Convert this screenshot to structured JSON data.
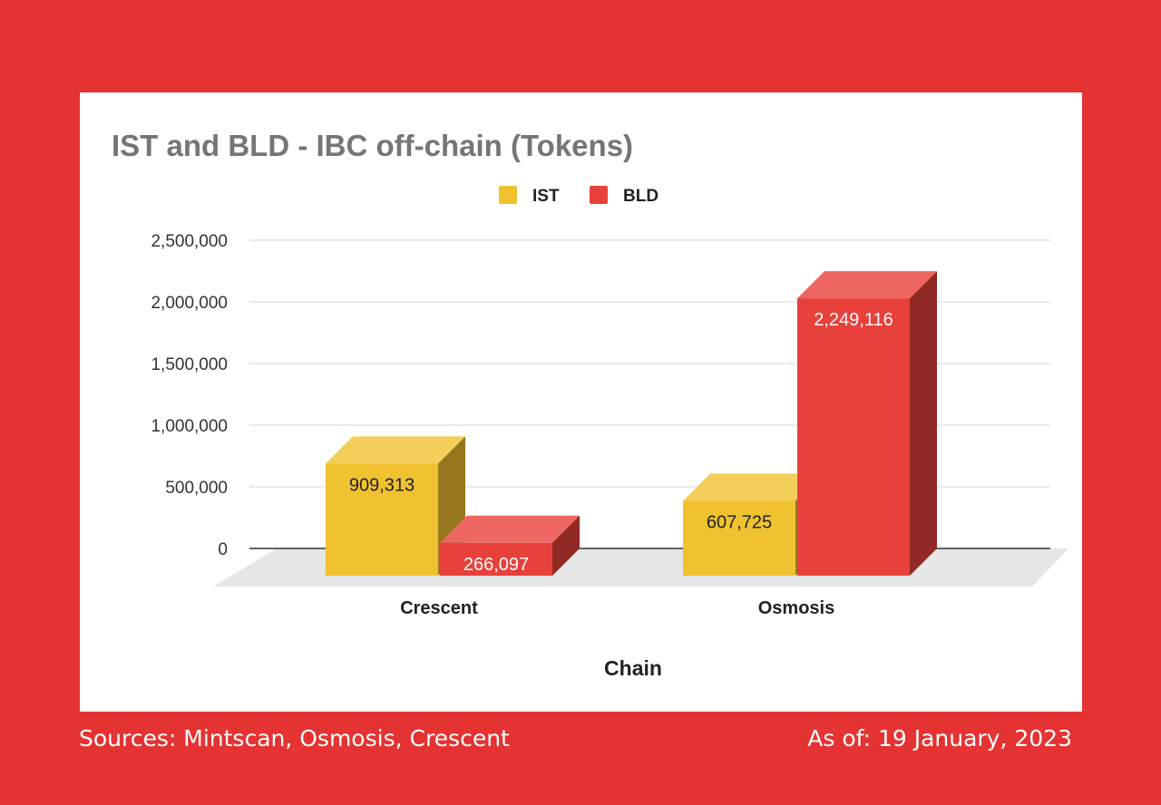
{
  "colors": {
    "background": "#e53232",
    "card": "#ffffff",
    "ist": "#f0c230",
    "bld": "#e8403a"
  },
  "chart_data": {
    "type": "bar",
    "title": "IST and BLD - IBC off-chain (Tokens)",
    "xlabel": "Chain",
    "ylabel": "",
    "categories": [
      "Crescent",
      "Osmosis"
    ],
    "series": [
      {
        "name": "IST",
        "values": [
          909313,
          607725
        ],
        "labels": [
          "909,313",
          "607,725"
        ]
      },
      {
        "name": "BLD",
        "values": [
          266097,
          2249116
        ],
        "labels": [
          "266,097",
          "2,249,116"
        ]
      }
    ],
    "y_ticks": [
      "0",
      "500,000",
      "1,000,000",
      "1,500,000",
      "2,000,000",
      "2,500,000"
    ],
    "ylim": [
      0,
      2500000
    ],
    "grid": true,
    "legend": "top-center",
    "style": "3d"
  },
  "footer": {
    "sources": "Sources: Mintscan, Osmosis, Crescent",
    "as_of": "As of: 19 January, 2023"
  }
}
